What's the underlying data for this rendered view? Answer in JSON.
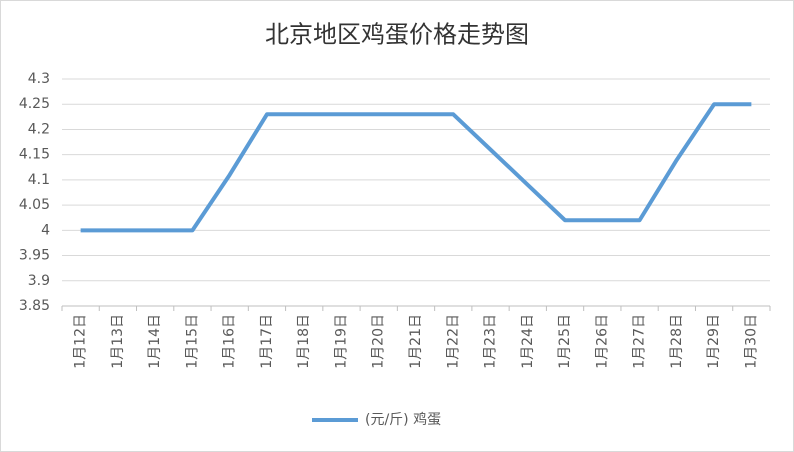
{
  "chart_data": {
    "type": "line",
    "title": "北京地区鸡蛋价格走势图",
    "categories": [
      "1月12日",
      "1月13日",
      "1月14日",
      "1月15日",
      "1月16日",
      "1月17日",
      "1月18日",
      "1月19日",
      "1月20日",
      "1月21日",
      "1月22日",
      "1月23日",
      "1月24日",
      "1月25日",
      "1月26日",
      "1月27日",
      "1月28日",
      "1月29日",
      "1月30日"
    ],
    "series": [
      {
        "name": "(元/斤) 鸡蛋",
        "color": "#5b9bd5",
        "values": [
          4,
          4,
          4,
          4,
          4.11,
          4.23,
          4.23,
          4.23,
          4.23,
          4.23,
          4.23,
          4.16,
          4.09,
          4.02,
          4.02,
          4.02,
          4.14,
          4.25,
          4.25
        ]
      }
    ],
    "ylim": [
      3.85,
      4.3
    ],
    "yticks": [
      3.85,
      3.9,
      3.95,
      4,
      4.05,
      4.1,
      4.15,
      4.2,
      4.25,
      4.3
    ],
    "grid": true
  }
}
